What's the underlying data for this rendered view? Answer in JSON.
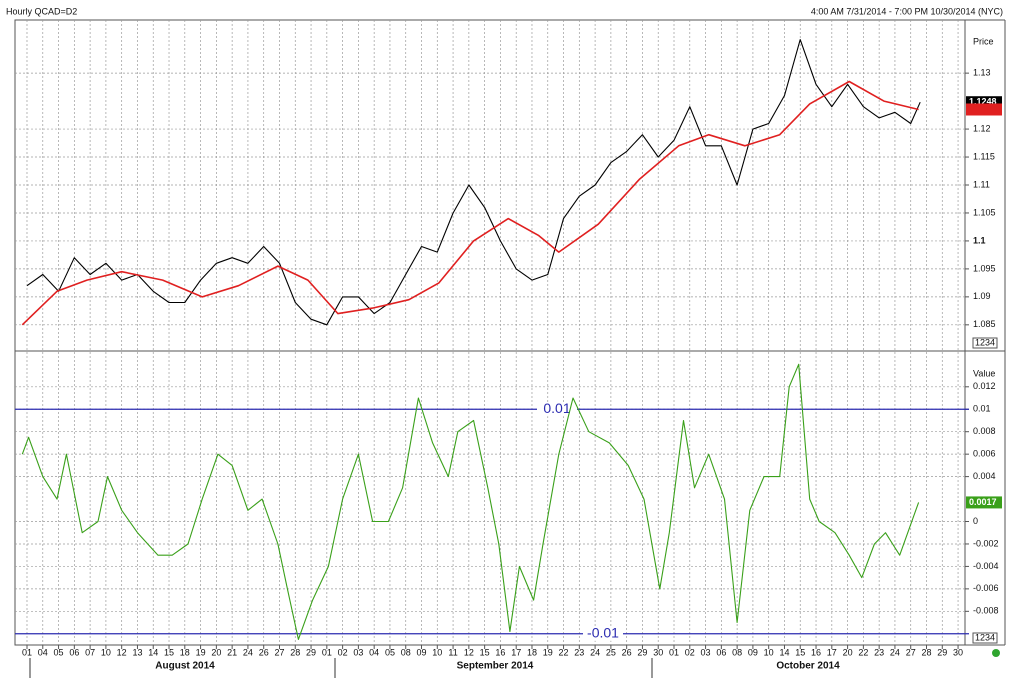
{
  "header": {
    "title": "Hourly QCAD=D2",
    "range": "4:00 AM 7/31/2014 - 7:00 PM 10/30/2014 (NYC)"
  },
  "chart_data": [
    {
      "type": "line",
      "y_label": "Price",
      "scale_box": "1234",
      "xlim": [
        -0.76,
        59.44
      ],
      "ylim": [
        1.0805,
        1.1395
      ],
      "yticks": [
        1.085,
        1.09,
        1.095,
        1.1,
        1.105,
        1.11,
        1.115,
        1.12,
        1.13
      ],
      "grid": true,
      "series": [
        {
          "color": "#000000",
          "x": [
            0,
            1,
            2,
            3,
            4,
            5,
            6,
            7,
            8,
            9,
            10,
            11,
            12,
            13,
            14,
            15,
            16,
            17,
            18,
            19,
            20,
            21,
            22,
            23,
            24,
            25,
            26,
            27,
            28,
            29,
            30,
            31,
            32,
            33,
            34,
            35,
            36,
            37,
            38,
            39,
            40,
            41,
            42,
            43,
            44,
            45,
            46,
            47,
            48,
            49,
            50,
            51,
            52,
            53,
            54,
            55,
            56,
            56.6
          ],
          "values": [
            1.092,
            1.094,
            1.091,
            1.097,
            1.094,
            1.096,
            1.093,
            1.094,
            1.091,
            1.089,
            1.089,
            1.093,
            1.096,
            1.097,
            1.096,
            1.099,
            1.096,
            1.089,
            1.086,
            1.085,
            1.09,
            1.09,
            1.087,
            1.089,
            1.094,
            1.099,
            1.098,
            1.105,
            1.11,
            1.106,
            1.1,
            1.095,
            1.093,
            1.094,
            1.104,
            1.108,
            1.11,
            1.114,
            1.116,
            1.119,
            1.115,
            1.118,
            1.124,
            1.117,
            1.117,
            1.11,
            1.12,
            1.121,
            1.126,
            1.136,
            1.128,
            1.124,
            1.128,
            1.124,
            1.122,
            1.123,
            1.121,
            1.1248
          ]
        },
        {
          "color": "#e02020",
          "x": [
            -0.3,
            1.9,
            3.8,
            6,
            8.6,
            11.1,
            13.4,
            15.9,
            17.8,
            19.7,
            21.9,
            24.2,
            26.1,
            28.3,
            30.5,
            32.4,
            33.7,
            36.2,
            38.8,
            41.3,
            43.2,
            45.5,
            47.7,
            49.6,
            52.1,
            54.3,
            56.5
          ],
          "values": [
            1.085,
            1.091,
            1.093,
            1.0945,
            1.093,
            1.09,
            1.092,
            1.0955,
            1.093,
            1.087,
            1.088,
            1.0895,
            1.0925,
            1.1,
            1.104,
            1.101,
            1.098,
            1.103,
            1.111,
            1.117,
            1.119,
            1.117,
            1.119,
            1.1245,
            1.1285,
            1.125,
            1.1235
          ]
        }
      ]
    },
    {
      "type": "line",
      "y_label": "Value",
      "scale_box": "1234",
      "xlim": [
        -0.76,
        59.44
      ],
      "ylim": [
        -0.011,
        0.0151
      ],
      "yticks": [
        -0.008,
        -0.006,
        -0.004,
        -0.002,
        0,
        0.004,
        0.006,
        0.008,
        0.01,
        0.012
      ],
      "grid": true,
      "levels": [
        {
          "value": 0.01,
          "label": "0.01",
          "color": "#2b2bb0"
        },
        {
          "value": -0.01,
          "label": "-0.01",
          "color": "#2b2bb0"
        }
      ],
      "months": [
        "August 2014",
        "September 2014",
        "October 2014"
      ],
      "xticks": [
        {
          "value": 0,
          "label": "01"
        },
        {
          "value": 1,
          "label": "04"
        },
        {
          "value": 2,
          "label": "05"
        },
        {
          "value": 3,
          "label": "06"
        },
        {
          "value": 4,
          "label": "07"
        },
        {
          "value": 5,
          "label": "10"
        },
        {
          "value": 6,
          "label": "12"
        },
        {
          "value": 7,
          "label": "13"
        },
        {
          "value": 8,
          "label": "14"
        },
        {
          "value": 9,
          "label": "15"
        },
        {
          "value": 10,
          "label": "18"
        },
        {
          "value": 11,
          "label": "19"
        },
        {
          "value": 12,
          "label": "20"
        },
        {
          "value": 13,
          "label": "21"
        },
        {
          "value": 14,
          "label": "24"
        },
        {
          "value": 15,
          "label": "26"
        },
        {
          "value": 16,
          "label": "27"
        },
        {
          "value": 17,
          "label": "28"
        },
        {
          "value": 18,
          "label": "29"
        },
        {
          "value": 19,
          "label": "01"
        },
        {
          "value": 20,
          "label": "02"
        },
        {
          "value": 21,
          "label": "03"
        },
        {
          "value": 22,
          "label": "04"
        },
        {
          "value": 23,
          "label": "05"
        },
        {
          "value": 24,
          "label": "08"
        },
        {
          "value": 25,
          "label": "09"
        },
        {
          "value": 26,
          "label": "10"
        },
        {
          "value": 27,
          "label": "11"
        },
        {
          "value": 28,
          "label": "12"
        },
        {
          "value": 29,
          "label": "15"
        },
        {
          "value": 30,
          "label": "16"
        },
        {
          "value": 31,
          "label": "17"
        },
        {
          "value": 32,
          "label": "18"
        },
        {
          "value": 33,
          "label": "19"
        },
        {
          "value": 34,
          "label": "22"
        },
        {
          "value": 35,
          "label": "23"
        },
        {
          "value": 36,
          "label": "24"
        },
        {
          "value": 37,
          "label": "25"
        },
        {
          "value": 38,
          "label": "26"
        },
        {
          "value": 39,
          "label": "29"
        },
        {
          "value": 40,
          "label": "30"
        },
        {
          "value": 41,
          "label": "01"
        },
        {
          "value": 42,
          "label": "02"
        },
        {
          "value": 43,
          "label": "03"
        },
        {
          "value": 44,
          "label": "06"
        },
        {
          "value": 45,
          "label": "08"
        },
        {
          "value": 46,
          "label": "09"
        },
        {
          "value": 47,
          "label": "10"
        },
        {
          "value": 48,
          "label": "14"
        },
        {
          "value": 49,
          "label": "15"
        },
        {
          "value": 50,
          "label": "16"
        },
        {
          "value": 51,
          "label": "17"
        },
        {
          "value": 52,
          "label": "20"
        },
        {
          "value": 53,
          "label": "22"
        },
        {
          "value": 54,
          "label": "23"
        },
        {
          "value": 55,
          "label": "24"
        },
        {
          "value": 56,
          "label": "27"
        },
        {
          "value": 57,
          "label": "28"
        },
        {
          "value": 58,
          "label": "29"
        },
        {
          "value": 59,
          "label": "30"
        }
      ],
      "series": [
        {
          "color": "#3aa01a",
          "x": [
            -0.3,
            0.1,
            1,
            1.9,
            2.5,
            3.5,
            4.5,
            5.1,
            6,
            7,
            8.3,
            9.2,
            10.2,
            11.1,
            12.1,
            13,
            14,
            14.9,
            15.9,
            16.5,
            17.2,
            18.1,
            19.1,
            20,
            21,
            21.9,
            22.9,
            23.8,
            24.8,
            25.7,
            26.7,
            27.3,
            28.3,
            29.2,
            29.9,
            30.6,
            31.2,
            32.1,
            32.7,
            33.7,
            34.6,
            35.6,
            36.9,
            38.1,
            39.1,
            40.1,
            40.7,
            41.6,
            42.3,
            43.2,
            44.2,
            45,
            45.8,
            46.7,
            47.7,
            48.3,
            48.9,
            49.6,
            50.2,
            51.2,
            52.1,
            52.9,
            53.7,
            54.4,
            55.3,
            56.5
          ],
          "values": [
            0.006,
            0.0075,
            0.004,
            0.002,
            0.006,
            -0.001,
            0,
            0.004,
            0.001,
            -0.001,
            -0.003,
            -0.003,
            -0.002,
            0.002,
            0.006,
            0.005,
            0.001,
            0.002,
            -0.002,
            -0.006,
            -0.0105,
            -0.007,
            -0.004,
            0.002,
            0.006,
            0,
            0,
            0.003,
            0.011,
            0.007,
            0.004,
            0.008,
            0.009,
            0.003,
            -0.002,
            -0.0098,
            -0.004,
            -0.007,
            -0.002,
            0.006,
            0.011,
            0.008,
            0.007,
            0.005,
            0.002,
            -0.006,
            -0.001,
            0.009,
            0.003,
            0.006,
            0.002,
            -0.009,
            0.001,
            0.004,
            0.004,
            0.012,
            0.014,
            0.002,
            0,
            -0.001,
            -0.003,
            -0.005,
            -0.002,
            -0.001,
            -0.003,
            0.0017
          ]
        }
      ]
    }
  ]
}
